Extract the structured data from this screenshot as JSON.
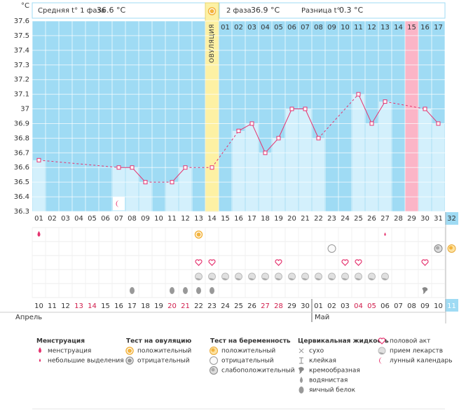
{
  "header": {
    "phase1_label": "Средняя t° 1 фаза",
    "phase1_value": "36.6 °C",
    "phase2_label": "2 фаза",
    "phase2_value": "36.9 °C",
    "diff_label": "Разница t°",
    "diff_value": "0.3 °C"
  },
  "chart_data": {
    "type": "line",
    "y_unit": "°C",
    "categories": [
      "01",
      "02",
      "03",
      "04",
      "05",
      "06",
      "07",
      "08",
      "09",
      "10",
      "11",
      "12",
      "13",
      "14",
      "15",
      "16",
      "17",
      "18",
      "19",
      "20",
      "21",
      "22",
      "23",
      "24",
      "25",
      "26",
      "27",
      "28",
      "29",
      "30",
      "31",
      "32"
    ],
    "cycle_days": [
      "01",
      "02",
      "03",
      "04",
      "05",
      "06",
      "07",
      "08",
      "09",
      "10",
      "11",
      "12",
      "13",
      "14",
      "15",
      "16",
      "17"
    ],
    "ovulation_label": "ОВУЛЯЦИЯ",
    "ylim": [
      36.3,
      37.6
    ],
    "yticks": [
      36.3,
      36.4,
      36.5,
      36.6,
      36.7,
      36.8,
      36.9,
      37,
      37.1,
      37.2,
      37.3,
      37.4,
      37.5,
      37.6
    ],
    "series": [
      {
        "color": "#e5336f",
        "values": [
          36.65,
          null,
          null,
          null,
          null,
          null,
          36.6,
          36.6,
          36.5,
          null,
          36.5,
          36.6,
          null,
          36.6,
          null,
          36.85,
          36.9,
          36.7,
          36.8,
          37,
          37,
          36.8,
          null,
          null,
          37.1,
          36.9,
          37.05,
          null,
          null,
          37,
          36.9,
          null
        ]
      }
    ],
    "bar_color": "#d3f0fc",
    "background": "#9fdbf4",
    "ovulation_color": "#fdf1a4",
    "highlight_color": "#fbb5c7",
    "grid": true
  },
  "calendar": {
    "dates": [
      "10",
      "11",
      "12",
      "13",
      "14",
      "15",
      "16",
      "17",
      "18",
      "19",
      "20",
      "21",
      "22",
      "23",
      "24",
      "25",
      "26",
      "27",
      "28",
      "29",
      "30",
      "01",
      "02",
      "03",
      "04",
      "05",
      "06",
      "07",
      "08",
      "09",
      "10",
      "11"
    ],
    "date_colors": [
      "#333",
      "#333",
      "#333",
      "#d01c4b",
      "#d01c4b",
      "#333",
      "#333",
      "#333",
      "#333",
      "#333",
      "#d01c4b",
      "#d01c4b",
      "#333",
      "#333",
      "#333",
      "#333",
      "#333",
      "#d01c4b",
      "#d01c4b",
      "#333",
      "#333",
      "#333",
      "#333",
      "#333",
      "#d01c4b",
      "#d01c4b",
      "#333",
      "#333",
      "#333",
      "#333",
      "#333",
      "#fff"
    ],
    "months": [
      "Апрель",
      "Май"
    ]
  },
  "legend": {
    "groups": [
      {
        "title": "Менструация",
        "items": [
          "менструация",
          "небольшие выделения"
        ]
      },
      {
        "title": "Тест на овуляцию",
        "items": [
          "положительный",
          "отрицательный"
        ]
      },
      {
        "title": "Тест на беременность",
        "items": [
          "положительный",
          "отрицательный",
          "слабоположительный"
        ]
      },
      {
        "title": "Цервикальная жидкость",
        "items": [
          "сухо",
          "клейкая",
          "кремообразная",
          "водянистая",
          "яичный белок"
        ]
      },
      {
        "items": [
          "половой акт",
          "прием лекарств",
          "лунный календарь"
        ]
      }
    ]
  }
}
